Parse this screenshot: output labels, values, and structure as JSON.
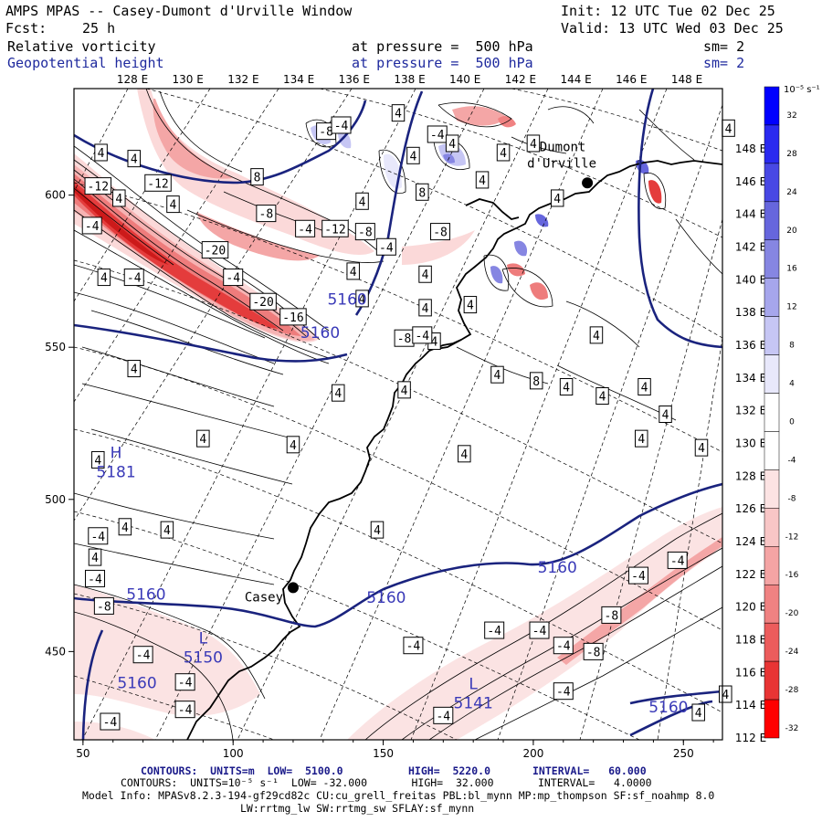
{
  "header": {
    "title": "AMPS MPAS -- Casey-Dumont d'Urville Window",
    "init": "Init: 12 UTC Tue 02 Dec 25",
    "fcst_label": "Fcst:",
    "fcst_value": "25 h",
    "valid": "Valid: 13 UTC Wed 03 Dec 25",
    "field1": {
      "name": "Relative vorticity",
      "pressure": "at pressure =  500 hPa",
      "sm": "sm= 2"
    },
    "field2": {
      "name": "Geopotential height",
      "pressure": "at pressure =  500 hPa",
      "sm": "sm= 2"
    }
  },
  "top_lon_labels": [
    "128 E",
    "130 E",
    "132 E",
    "134 E",
    "136 E",
    "138 E",
    "140 E",
    "142 E",
    "144 E",
    "146 E",
    "148 E"
  ],
  "right_lon_labels": [
    "148 E",
    "146 E",
    "144 E",
    "142 E",
    "140 E",
    "138 E",
    "136 E",
    "134 E",
    "132 E",
    "130 E",
    "128 E",
    "126 E",
    "124 E",
    "122 E",
    "120 E",
    "118 E",
    "116 E",
    "114 E",
    "112 E"
  ],
  "x_axis": {
    "ticks": [
      "50",
      "100",
      "150",
      "200",
      "250"
    ],
    "values": [
      50,
      100,
      150,
      200,
      250
    ],
    "range": [
      47,
      263
    ]
  },
  "y_axis": {
    "ticks": [
      "600",
      "550",
      "500",
      "450"
    ],
    "values": [
      600,
      550,
      500,
      450
    ],
    "range": [
      421,
      635
    ]
  },
  "colorbar": {
    "unit_label": "10⁻⁵ s⁻¹",
    "levels": [
      "32",
      "28",
      "24",
      "20",
      "16",
      "12",
      "8",
      "4",
      "0",
      "-4",
      "-8",
      "-12",
      "-16",
      "-20",
      "-24",
      "-28",
      "-32"
    ],
    "colors": [
      "#0000ff",
      "#2a2af0",
      "#4848e4",
      "#6666dd",
      "#8686e2",
      "#a6a6ec",
      "#c6c6f4",
      "#e8e8fb",
      "#ffffff",
      "#ffffff",
      "#fce3e3",
      "#f8c6c6",
      "#f4a4a4",
      "#f08282",
      "#ec5c5c",
      "#e83434",
      "#ff0000"
    ]
  },
  "places": [
    {
      "name": "Dumont",
      "name2": "d'Urville",
      "x": 218,
      "y": 604
    },
    {
      "name": "Casey",
      "x": 120,
      "y": 471
    }
  ],
  "height_labels": [
    {
      "text": "5160",
      "x": 138,
      "y": 564
    },
    {
      "text": "5160",
      "x": 129,
      "y": 553
    },
    {
      "text": "5160",
      "x": 71,
      "y": 467
    },
    {
      "text": "5160",
      "x": 151,
      "y": 466
    },
    {
      "text": "5160",
      "x": 208,
      "y": 476
    },
    {
      "text": "5160",
      "x": 245,
      "y": 430
    },
    {
      "text": "5160",
      "x": 68,
      "y": 438
    }
  ],
  "extrema": [
    {
      "letter": "H",
      "value": "5181",
      "x": 61,
      "y": 510
    },
    {
      "letter": "L",
      "value": "5150",
      "x": 90,
      "y": 449
    },
    {
      "letter": "L",
      "value": "5141",
      "x": 180,
      "y": 434
    }
  ],
  "vort_labels": [
    {
      "t": "-8",
      "x": 131,
      "y": 621
    },
    {
      "t": "-4",
      "x": 136,
      "y": 623
    },
    {
      "t": "4",
      "x": 155,
      "y": 627
    },
    {
      "t": "-4",
      "x": 168,
      "y": 620
    },
    {
      "t": "4",
      "x": 173,
      "y": 617
    },
    {
      "t": "4",
      "x": 200,
      "y": 617
    },
    {
      "t": "4",
      "x": 265,
      "y": 622
    },
    {
      "t": "4",
      "x": 67,
      "y": 612
    },
    {
      "t": "-12",
      "x": 75,
      "y": 604
    },
    {
      "t": "8",
      "x": 108,
      "y": 606
    },
    {
      "t": "4",
      "x": 143,
      "y": 598
    },
    {
      "t": "4",
      "x": 160,
      "y": 613
    },
    {
      "t": "8",
      "x": 163,
      "y": 601
    },
    {
      "t": "4",
      "x": 190,
      "y": 614
    },
    {
      "t": "4",
      "x": 183,
      "y": 605
    },
    {
      "t": "4",
      "x": 56,
      "y": 614
    },
    {
      "t": "-12",
      "x": 55,
      "y": 603
    },
    {
      "t": "4",
      "x": 80,
      "y": 597
    },
    {
      "t": "4",
      "x": 62,
      "y": 599
    },
    {
      "t": "-8",
      "x": 111,
      "y": 594
    },
    {
      "t": "-4",
      "x": 124,
      "y": 589
    },
    {
      "t": "-12",
      "x": 134,
      "y": 589
    },
    {
      "t": "-8",
      "x": 144,
      "y": 588
    },
    {
      "t": "-8",
      "x": 169,
      "y": 588
    },
    {
      "t": "-4",
      "x": 53,
      "y": 590
    },
    {
      "t": "-20",
      "x": 94,
      "y": 582
    },
    {
      "t": "4",
      "x": 140,
      "y": 575
    },
    {
      "t": "-4",
      "x": 151,
      "y": 583
    },
    {
      "t": "4",
      "x": 164,
      "y": 574
    },
    {
      "t": "4",
      "x": 208,
      "y": 599
    },
    {
      "t": "4",
      "x": 57,
      "y": 573
    },
    {
      "t": "-4",
      "x": 67,
      "y": 573
    },
    {
      "t": "-4",
      "x": 100,
      "y": 573
    },
    {
      "t": "-20",
      "x": 110,
      "y": 565
    },
    {
      "t": "4",
      "x": 164,
      "y": 563
    },
    {
      "t": "4",
      "x": 167,
      "y": 552
    },
    {
      "t": "-16",
      "x": 120,
      "y": 560
    },
    {
      "t": "-8",
      "x": 157,
      "y": 553
    },
    {
      "t": "4",
      "x": 143,
      "y": 566
    },
    {
      "t": "-4",
      "x": 163,
      "y": 554
    },
    {
      "t": "4",
      "x": 179,
      "y": 564
    },
    {
      "t": "4",
      "x": 221,
      "y": 554
    },
    {
      "t": "4",
      "x": 67,
      "y": 543
    },
    {
      "t": "8",
      "x": 201,
      "y": 539
    },
    {
      "t": "4",
      "x": 211,
      "y": 537
    },
    {
      "t": "4",
      "x": 223,
      "y": 534
    },
    {
      "t": "4",
      "x": 237,
      "y": 537
    },
    {
      "t": "4",
      "x": 135,
      "y": 535
    },
    {
      "t": "4",
      "x": 157,
      "y": 536
    },
    {
      "t": "4",
      "x": 188,
      "y": 541
    },
    {
      "t": "4",
      "x": 90,
      "y": 520
    },
    {
      "t": "4",
      "x": 120,
      "y": 518
    },
    {
      "t": "4",
      "x": 177,
      "y": 515
    },
    {
      "t": "4",
      "x": 244,
      "y": 528
    },
    {
      "t": "4",
      "x": 236,
      "y": 520
    },
    {
      "t": "4",
      "x": 256,
      "y": 517
    },
    {
      "t": "4",
      "x": 55,
      "y": 513
    },
    {
      "t": "4",
      "x": 64,
      "y": 491
    },
    {
      "t": "4",
      "x": 78,
      "y": 490
    },
    {
      "t": "-4",
      "x": 55,
      "y": 488
    },
    {
      "t": "4",
      "x": 148,
      "y": 490
    },
    {
      "t": "4",
      "x": 54,
      "y": 481
    },
    {
      "t": "-4",
      "x": 54,
      "y": 474
    },
    {
      "t": "-8",
      "x": 57,
      "y": 465
    },
    {
      "t": "-4",
      "x": 235,
      "y": 475
    },
    {
      "t": "-4",
      "x": 248,
      "y": 480
    },
    {
      "t": "-8",
      "x": 226,
      "y": 462
    },
    {
      "t": "-4",
      "x": 187,
      "y": 457
    },
    {
      "t": "-4",
      "x": 202,
      "y": 457
    },
    {
      "t": "-4",
      "x": 160,
      "y": 452
    },
    {
      "t": "-4",
      "x": 210,
      "y": 452
    },
    {
      "t": "-8",
      "x": 220,
      "y": 450
    },
    {
      "t": "-4",
      "x": 70,
      "y": 449
    },
    {
      "t": "-4",
      "x": 84,
      "y": 440
    },
    {
      "t": "-4",
      "x": 210,
      "y": 437
    },
    {
      "t": "-4",
      "x": 59,
      "y": 427
    },
    {
      "t": "-4",
      "x": 170,
      "y": 429
    },
    {
      "t": "4",
      "x": 264,
      "y": 436
    },
    {
      "t": "4",
      "x": 255,
      "y": 430
    },
    {
      "t": "-4",
      "x": 84,
      "y": 431
    }
  ],
  "footer": {
    "line1_a": "CONTOURS:  UNITS=m  LOW=  5100.0",
    "line1_b": "HIGH=  5220.0",
    "line1_c": "INTERVAL=   60.000",
    "line2": "CONTOURS:  UNITS=10⁻⁵ s⁻¹  LOW= -32.000       HIGH=  32.000       INTERVAL=   4.0000",
    "line3": "Model Info: MPASv8.2.3-194-gf29cd82c CU:cu_grell_freitas PBL:bl_mynn MP:mp_thompson SF:sf_noahmp 8.0",
    "line4": "LW:rrtmg_lw SW:rrtmg_sw SFLAY:sf_mynn"
  }
}
